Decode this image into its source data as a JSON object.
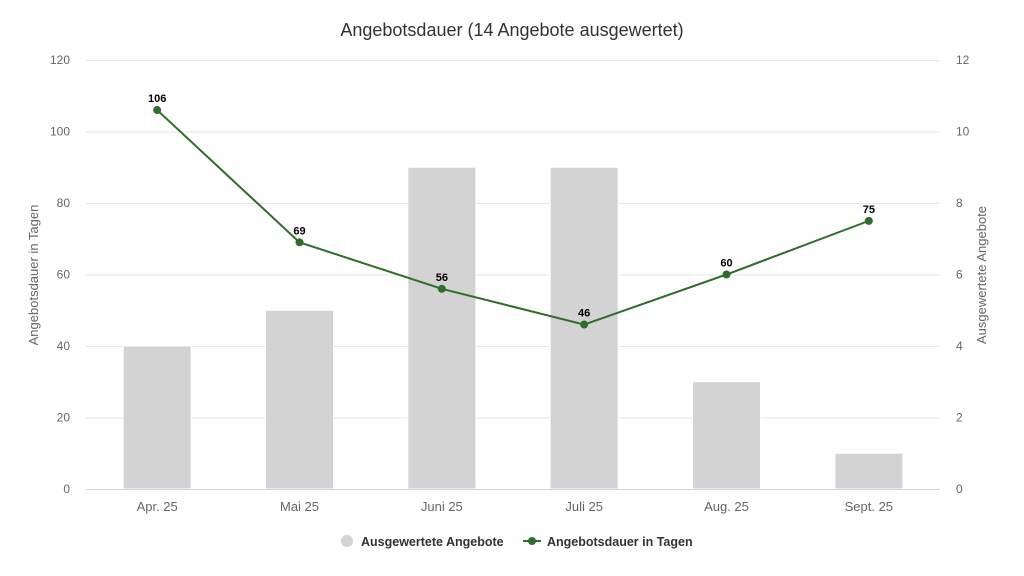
{
  "chart_data": {
    "type": "bar+line",
    "title": "Angebotsdauer (14 Angebote ausgewertet)",
    "categories": [
      "Apr. 25",
      "Mai 25",
      "Juni 25",
      "Juli 25",
      "Aug. 25",
      "Sept. 25"
    ],
    "series": [
      {
        "name": "Ausgewertete Angebote",
        "type": "bar",
        "axis": "right",
        "color": "#d3d3d3",
        "values": [
          4,
          5,
          9,
          9,
          3,
          1
        ]
      },
      {
        "name": "Angebotsdauer in Tagen",
        "type": "line",
        "axis": "left",
        "color": "#2e6e2a",
        "values": [
          106,
          69,
          56,
          46,
          60,
          75
        ],
        "data_labels": true
      }
    ],
    "y_left": {
      "label": "Angebotsdauer in Tagen",
      "ylim": [
        0,
        120
      ],
      "ticks": [
        0,
        20,
        40,
        60,
        80,
        100,
        120
      ]
    },
    "y_right": {
      "label": "Ausgewertete Angebote",
      "ylim": [
        0,
        12
      ],
      "ticks": [
        0,
        2,
        4,
        6,
        8,
        10,
        12
      ]
    },
    "xlabel": "",
    "grid": true,
    "legend_position": "bottom"
  },
  "legend": {
    "items": [
      {
        "label": "Ausgewertete Angebote"
      },
      {
        "label": "Angebotsdauer in Tagen"
      }
    ]
  }
}
